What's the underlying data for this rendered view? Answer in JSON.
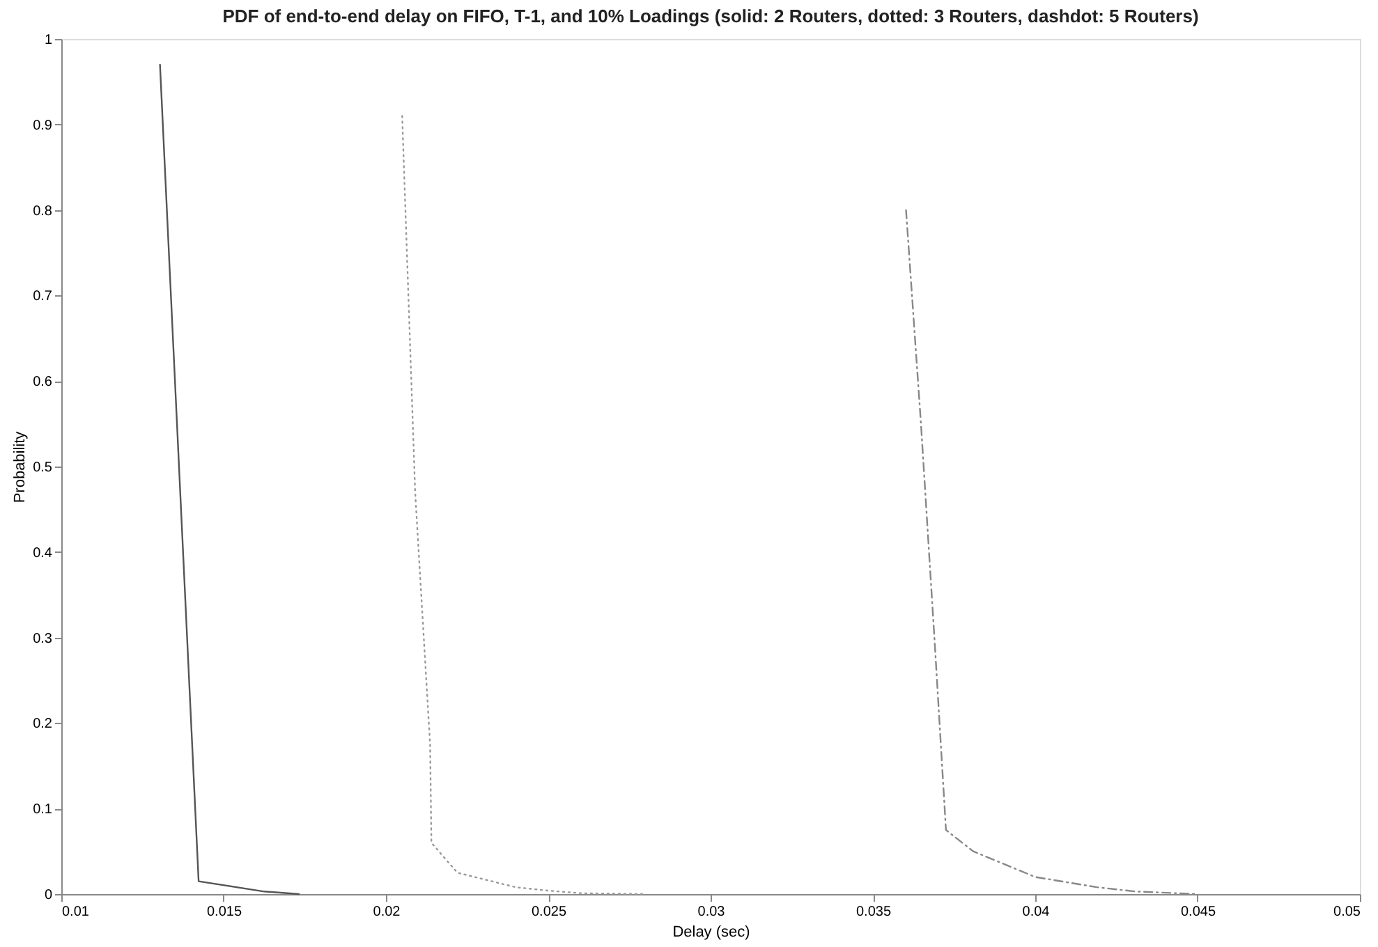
{
  "chart_data": {
    "type": "line",
    "title": "PDF of end-to-end delay on FIFO, T-1, and 10% Loadings (solid: 2 Routers, dotted: 3 Routers, dashdot: 5 Routers)",
    "xlabel": "Delay (sec)",
    "ylabel": "Probability",
    "series": [
      {
        "color": "#555555",
        "line_style": "solid",
        "x": [
          0.01304,
          0.01423,
          0.01625,
          0.01732
        ],
        "values": [
          0.97,
          0.015,
          0.003,
          0
        ]
      },
      {
        "color": "#9a9a9a",
        "line_style": "dotted",
        "x": [
          0.0205,
          0.0209,
          0.02136,
          0.0214,
          0.0222,
          0.024,
          0.025,
          0.026,
          0.028
        ],
        "values": [
          0.91,
          0.47,
          0.175,
          0.06,
          0.025,
          0.008,
          0.004,
          0.001,
          0
        ]
      },
      {
        "color": "#888888",
        "line_style": "dashdot",
        "x": [
          0.03602,
          0.03648,
          0.03691,
          0.03725,
          0.03809,
          0.04,
          0.0419,
          0.0431,
          0.045
        ],
        "values": [
          0.8,
          0.55,
          0.29,
          0.075,
          0.05,
          0.02,
          0.008,
          0.003,
          0
        ]
      }
    ],
    "xlim": [
      0.01,
      0.05
    ],
    "xticks": [
      0.01,
      0.015,
      0.02,
      0.025,
      0.03,
      0.035,
      0.04,
      0.045,
      0.05
    ],
    "ylim": [
      0,
      1
    ],
    "yticks": [
      0,
      0.1,
      0.2,
      0.3,
      0.4,
      0.5,
      0.6,
      0.7,
      0.8,
      0.9,
      1
    ],
    "grid": false
  }
}
